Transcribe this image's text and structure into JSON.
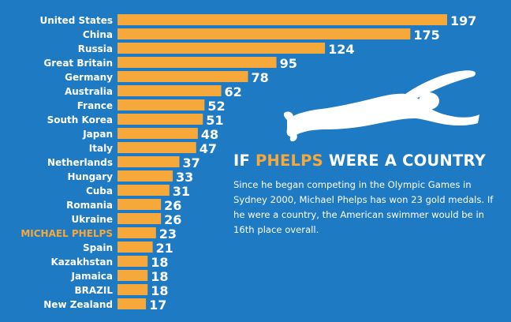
{
  "colors": {
    "background": "#1f7ac4",
    "bar": "#f7a83b",
    "highlight": "#f7a83b",
    "text": "#ffffff"
  },
  "headline": {
    "part1": "IF ",
    "highlight": "PHELPS",
    "part2": " WERE A COUNTRY"
  },
  "description": "Since he began competing in the Olympic Games in Sydney 2000, Michael Phelps has won 23 gold medals. If he were a country, the American swimmer would be in 16th place overall.",
  "illustration": "swimmer-silhouette",
  "chart_data": {
    "type": "bar",
    "orientation": "horizontal",
    "title": "",
    "xlabel": "",
    "ylabel": "",
    "xlim": [
      0,
      197
    ],
    "grid": false,
    "highlight_category": "MICHAEL PHELPS",
    "categories": [
      "United States",
      "China",
      "Russia",
      "Great Britain",
      "Germany",
      "Australia",
      "France",
      "South Korea",
      "Japan",
      "Italy",
      "Netherlands",
      "Hungary",
      "Cuba",
      "Romania",
      "Ukraine",
      "MICHAEL PHELPS",
      "Spain",
      "Kazakhstan",
      "Jamaica",
      "BRAZIL",
      "New Zealand"
    ],
    "values": [
      197,
      175,
      124,
      95,
      78,
      62,
      52,
      51,
      48,
      47,
      37,
      33,
      31,
      26,
      26,
      23,
      21,
      18,
      18,
      18,
      17
    ]
  }
}
